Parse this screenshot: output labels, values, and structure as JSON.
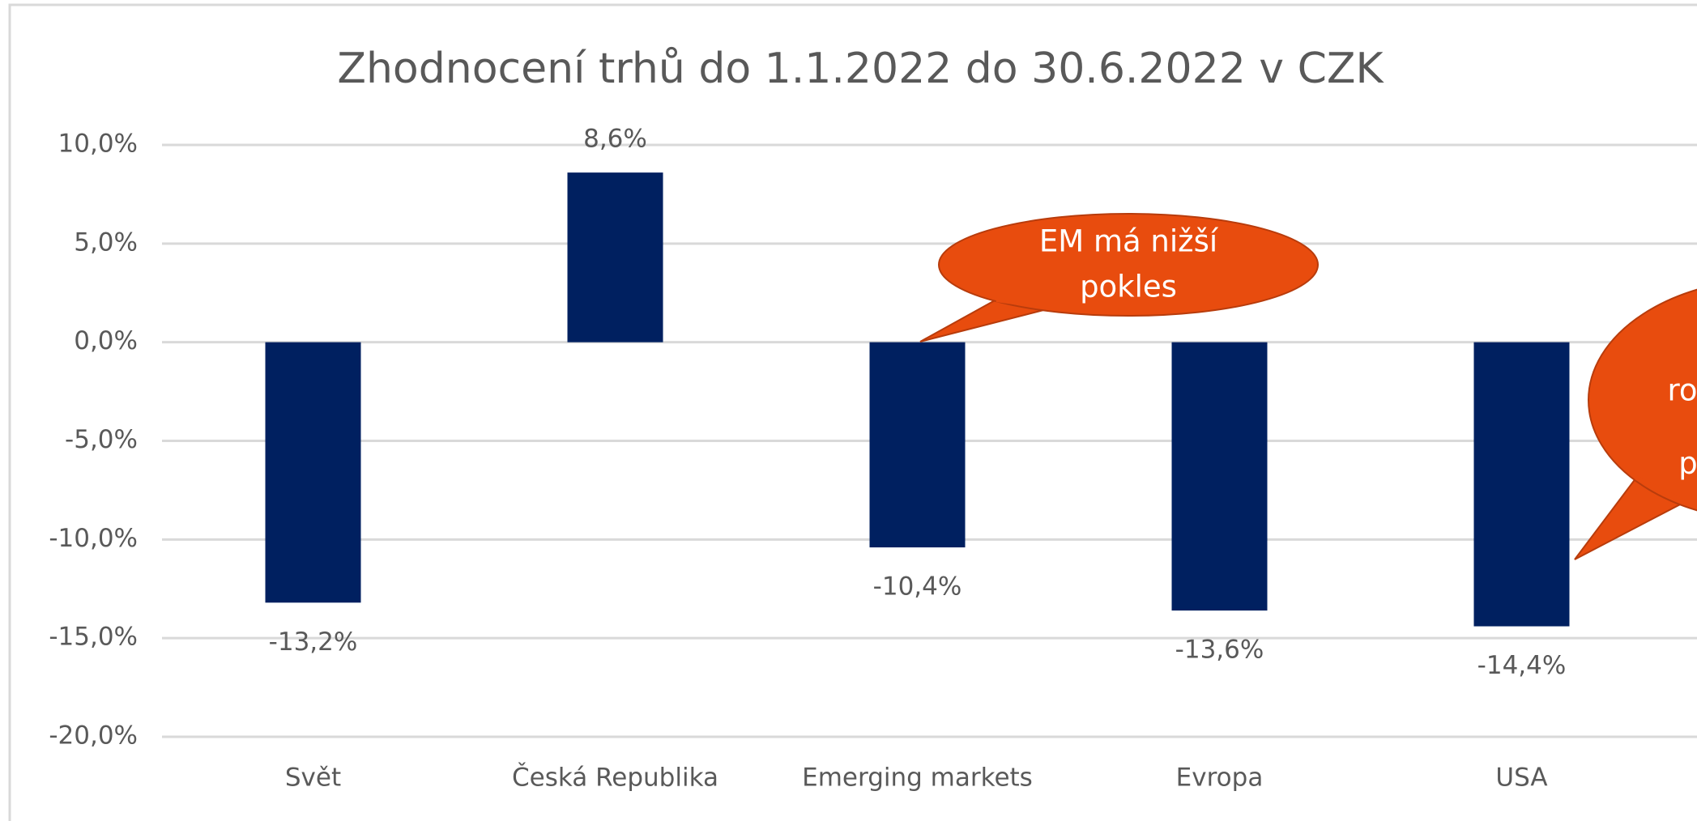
{
  "chart_data": {
    "type": "bar",
    "title": "Zhodnocení trhů do 1.1.2022 do 30.6.2022 v CZK",
    "categories": [
      "Svět",
      "Česká Republika",
      "Emerging markets",
      "Evropa",
      "USA"
    ],
    "values": [
      -13.2,
      8.6,
      -10.4,
      -13.6,
      -14.4
    ],
    "value_labels": [
      "-13,2%",
      "8,6%",
      "-10,4%",
      "-13,6%",
      "-14,4%"
    ],
    "color": "#002060",
    "ylim": [
      -20,
      10
    ],
    "yticks": [
      {
        "value": -20,
        "label": "-20,0%"
      },
      {
        "value": -15,
        "label": "-15,0%"
      },
      {
        "value": -10,
        "label": "-10,0%"
      },
      {
        "value": -5,
        "label": "-5,0%"
      },
      {
        "value": 0,
        "label": "0,0%"
      },
      {
        "value": 5,
        "label": "5,0%"
      },
      {
        "value": 10,
        "label": "10,0%"
      }
    ],
    "grid": true,
    "annotations": [
      {
        "lines": [
          "EM má nižší",
          "pokles"
        ],
        "color": "#e84c0e"
      },
      {
        "lines": [
          "ro",
          "p"
        ],
        "color": "#e84c0e"
      }
    ]
  }
}
